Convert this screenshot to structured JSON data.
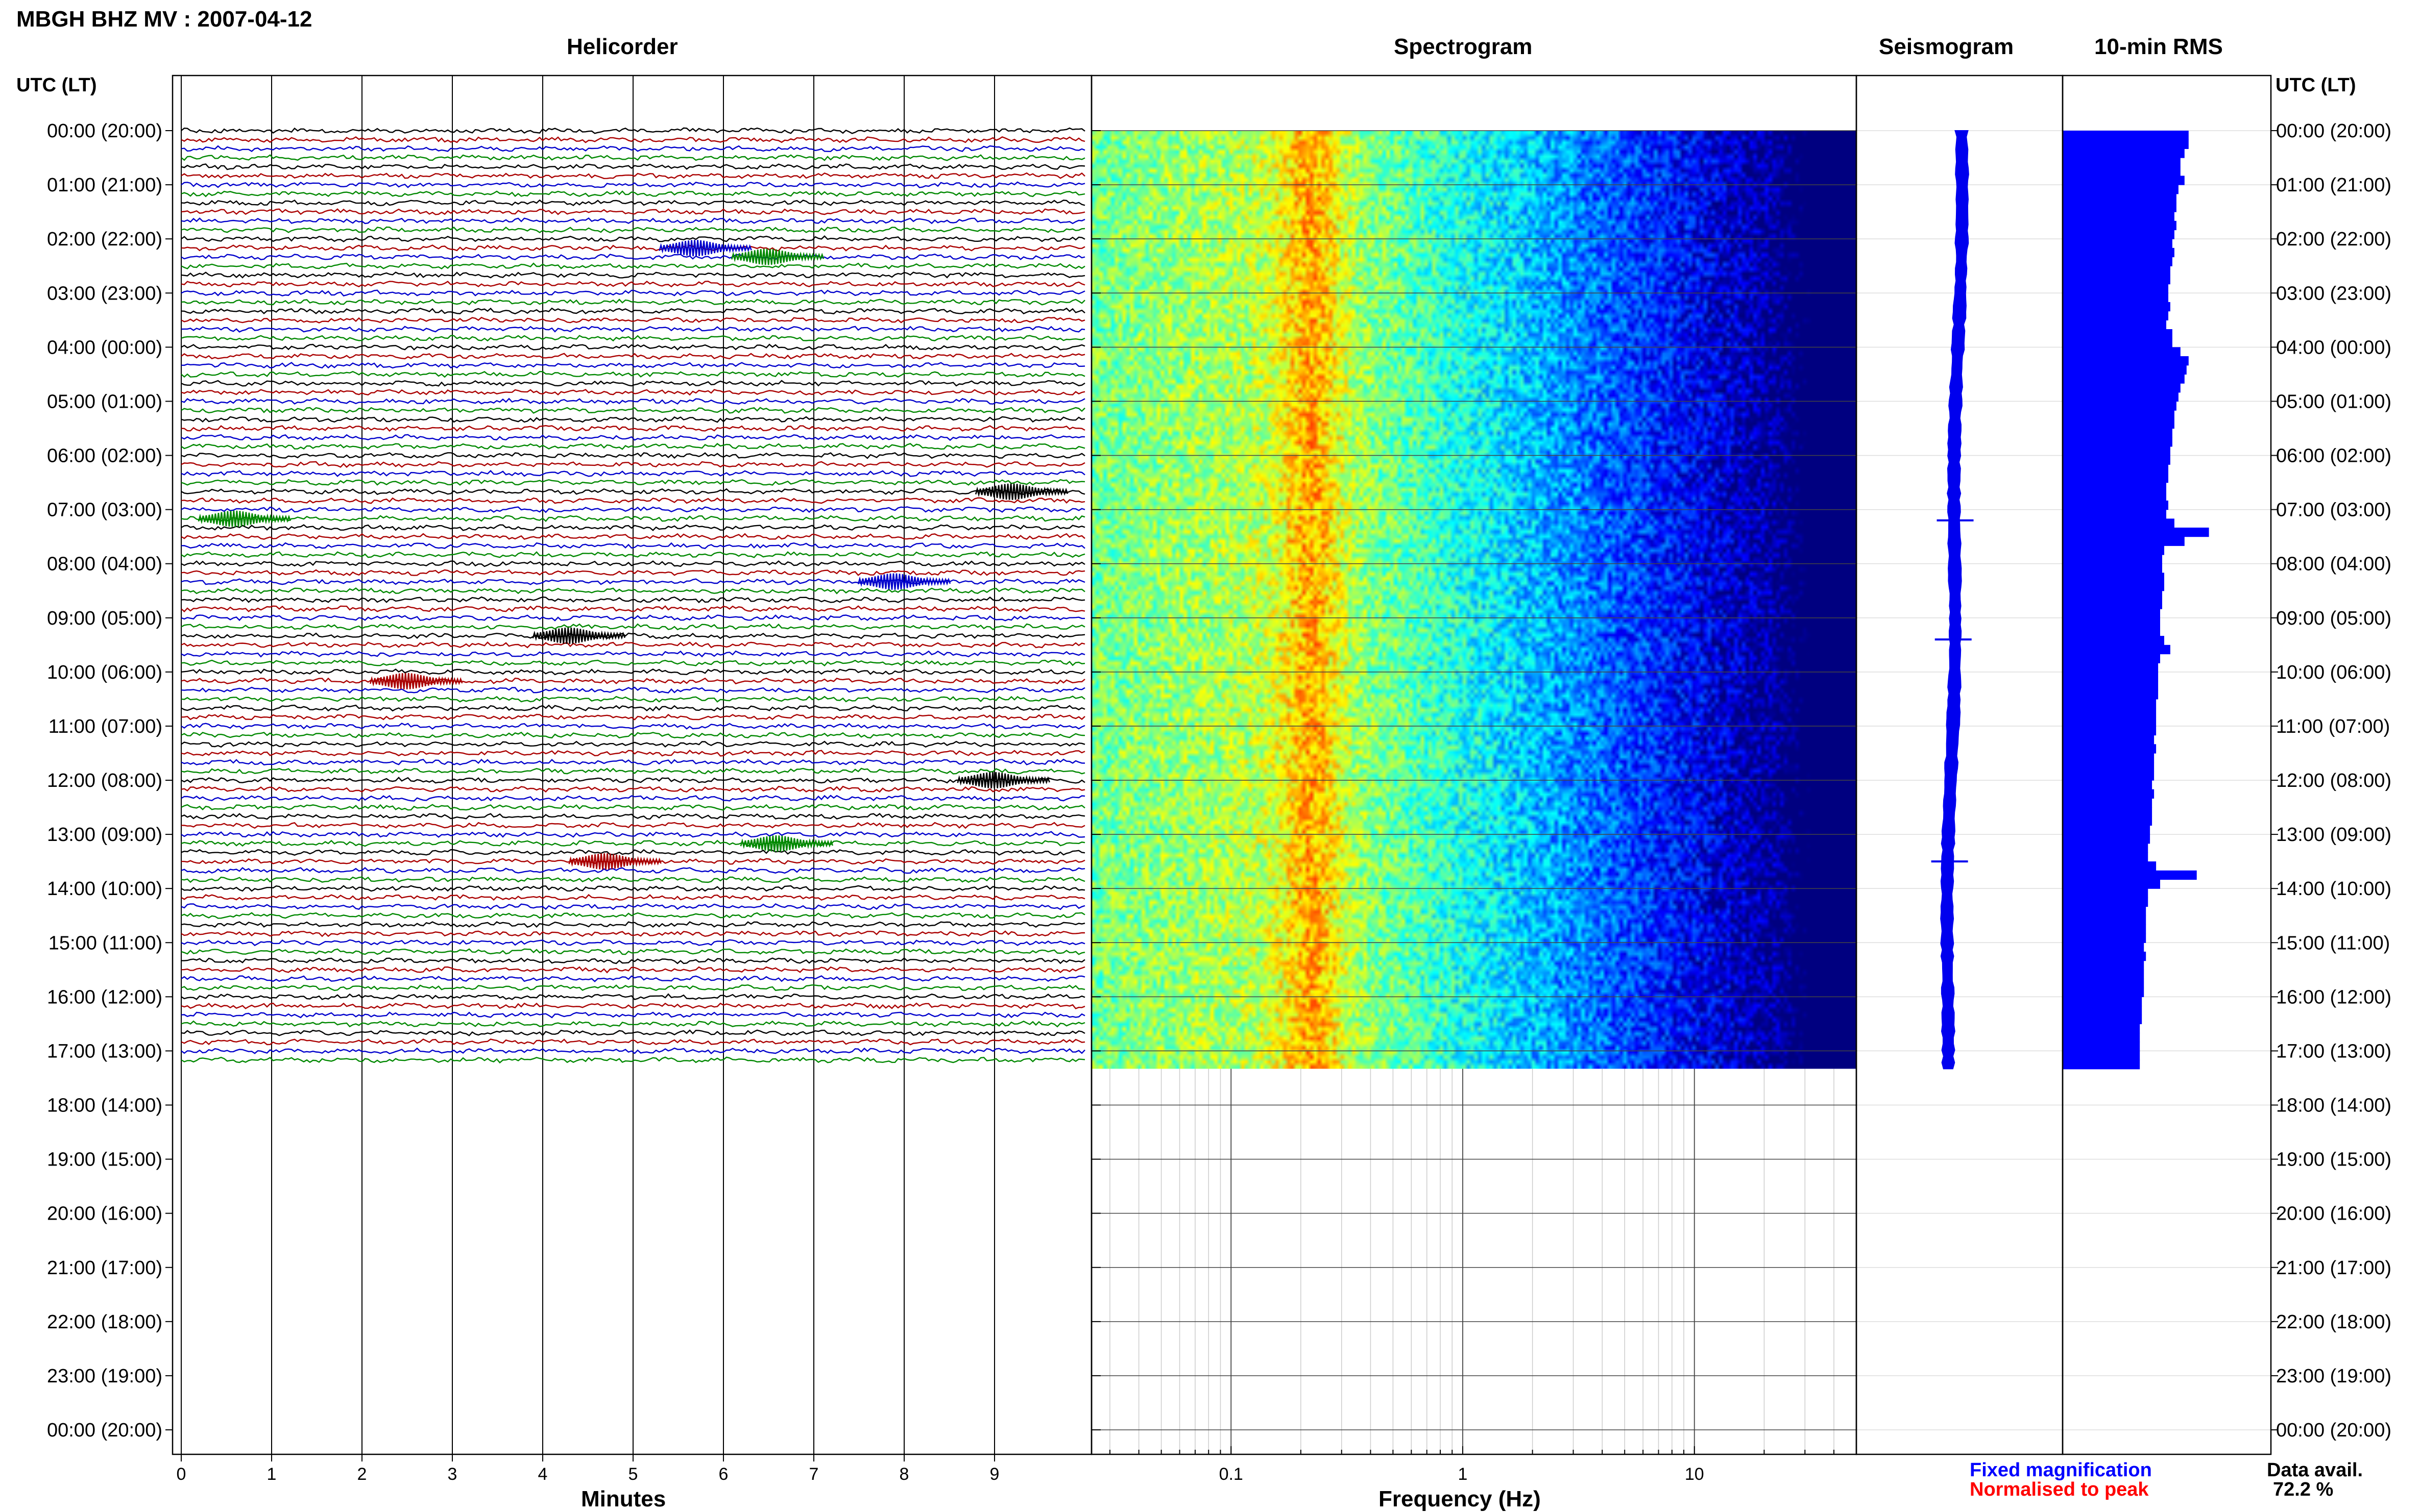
{
  "header": {
    "station_title": "MBGH BHZ MV : 2007-04-12",
    "time_axis_label": "UTC (LT)"
  },
  "panels": {
    "helicorder": "Helicorder",
    "spectrogram": "Spectrogram",
    "seismogram": "Seismogram",
    "rms": "10-min RMS"
  },
  "footer": {
    "fixed_magnification": "Fixed magnification",
    "normalised_to_peak": "Normalised to peak",
    "data_avail_label": "Data avail.",
    "data_avail_value": "72.2 %"
  },
  "colors": {
    "trace_cycle": [
      "#000000",
      "#aa0000",
      "#0000cc",
      "#008800"
    ],
    "seismogram_fill": "#0000ee",
    "rms_fill": "#0000ff",
    "legend_blue": "#0000ff",
    "legend_red": "#ff0000"
  },
  "chart_data": [
    {
      "type": "line",
      "title": "Helicorder",
      "xlabel": "Minutes",
      "ylabel": "UTC (LT)",
      "x_ticks": [
        "0",
        "1",
        "2",
        "3",
        "4",
        "5",
        "6",
        "7",
        "8",
        "9"
      ],
      "xlim": [
        0,
        10
      ],
      "y_ticks": [
        "00:00 (20:00)",
        "01:00 (21:00)",
        "02:00 (22:00)",
        "03:00 (23:00)",
        "04:00 (00:00)",
        "05:00 (01:00)",
        "06:00 (02:00)",
        "07:00 (03:00)",
        "08:00 (04:00)",
        "09:00 (05:00)",
        "10:00 (06:00)",
        "11:00 (07:00)",
        "12:00 (08:00)",
        "13:00 (09:00)",
        "14:00 (10:00)",
        "15:00 (11:00)",
        "16:00 (12:00)",
        "17:00 (13:00)",
        "18:00 (14:00)",
        "19:00 (15:00)",
        "20:00 (16:00)",
        "21:00 (17:00)",
        "22:00 (18:00)",
        "23:00 (19:00)",
        "00:00 (20:00)"
      ],
      "ylim_hours": [
        0,
        24
      ],
      "rows_per_hour": 6,
      "rows_with_data": 104,
      "events": [
        {
          "hour": 2.17,
          "minute": 5.8,
          "color": "blue"
        },
        {
          "hour": 2.33,
          "minute": 6.6,
          "color": "green"
        },
        {
          "hour": 6.67,
          "minute": 9.3,
          "color": "black"
        },
        {
          "hour": 7.17,
          "minute": 0.7,
          "color": "green"
        },
        {
          "hour": 8.33,
          "minute": 8.0,
          "color": "blue"
        },
        {
          "hour": 9.33,
          "minute": 4.4,
          "color": "black"
        },
        {
          "hour": 10.17,
          "minute": 2.6,
          "color": "red"
        },
        {
          "hour": 12.0,
          "minute": 9.1,
          "color": "black"
        },
        {
          "hour": 13.17,
          "minute": 6.7,
          "color": "green"
        },
        {
          "hour": 13.5,
          "minute": 4.8,
          "color": "red"
        }
      ]
    },
    {
      "type": "heatmap",
      "title": "Spectrogram",
      "xlabel": "Frequency (Hz)",
      "x_scale": "log",
      "xlim": [
        0.025,
        50
      ],
      "x_ticks": [
        "0.1",
        "1",
        "10"
      ],
      "ylim_hours": [
        0,
        24
      ],
      "data_until_hour": 17.33,
      "peak_frequency_hz": 0.22,
      "colormap": "jet"
    },
    {
      "type": "area",
      "title": "Seismogram",
      "ylim_hours": [
        0,
        24
      ],
      "data_until_hour": 17.33,
      "spikes_at_hours": [
        7.2,
        9.4,
        13.5
      ]
    },
    {
      "type": "bar",
      "title": "10-min RMS",
      "ylim_hours": [
        0,
        24
      ],
      "data_until_hour": 17.33,
      "relative_values": [
        0.62,
        0.62,
        0.6,
        0.58,
        0.58,
        0.6,
        0.57,
        0.56,
        0.56,
        0.55,
        0.56,
        0.55,
        0.54,
        0.55,
        0.54,
        0.53,
        0.53,
        0.52,
        0.52,
        0.53,
        0.52,
        0.51,
        0.54,
        0.54,
        0.58,
        0.62,
        0.61,
        0.6,
        0.58,
        0.57,
        0.56,
        0.55,
        0.55,
        0.54,
        0.54,
        0.53,
        0.53,
        0.52,
        0.52,
        0.51,
        0.51,
        0.52,
        0.51,
        0.55,
        0.72,
        0.6,
        0.5,
        0.49,
        0.49,
        0.5,
        0.5,
        0.49,
        0.49,
        0.48,
        0.48,
        0.48,
        0.5,
        0.53,
        0.48,
        0.47,
        0.47,
        0.47,
        0.47,
        0.46,
        0.46,
        0.46,
        0.46,
        0.45,
        0.46,
        0.45,
        0.45,
        0.45,
        0.44,
        0.45,
        0.44,
        0.44,
        0.44,
        0.43,
        0.43,
        0.42,
        0.42,
        0.46,
        0.66,
        0.48,
        0.42,
        0.42,
        0.41,
        0.41,
        0.41,
        0.41,
        0.4,
        0.41,
        0.4,
        0.4,
        0.4,
        0.4,
        0.39,
        0.39,
        0.39,
        0.38,
        0.38,
        0.38,
        0.38,
        0.38
      ]
    }
  ]
}
